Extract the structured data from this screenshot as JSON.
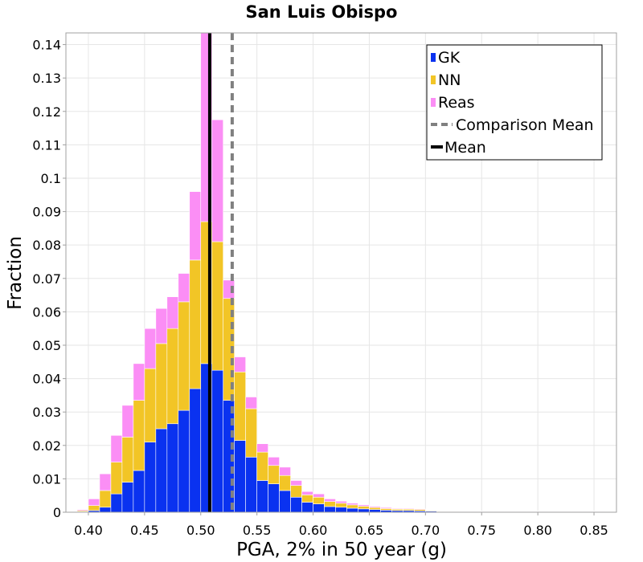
{
  "chart_data": {
    "type": "bar",
    "title": "San Luis Obispo",
    "xlabel": "PGA, 2% in 50 year (g)",
    "ylabel": "Fraction",
    "xlim": [
      0.38,
      0.87
    ],
    "ylim": [
      0,
      0.1435
    ],
    "bin_width": 0.01,
    "grid": true,
    "legend_position": "top-right",
    "x_ticks": [
      {
        "value": 0.4,
        "label": "0.40"
      },
      {
        "value": 0.45,
        "label": "0.45"
      },
      {
        "value": 0.5,
        "label": "0.50"
      },
      {
        "value": 0.55,
        "label": "0.55"
      },
      {
        "value": 0.6,
        "label": "0.60"
      },
      {
        "value": 0.65,
        "label": "0.65"
      },
      {
        "value": 0.7,
        "label": "0.70"
      },
      {
        "value": 0.75,
        "label": "0.75"
      },
      {
        "value": 0.8,
        "label": "0.80"
      },
      {
        "value": 0.85,
        "label": "0.85"
      }
    ],
    "y_ticks": [
      {
        "value": 0,
        "label": "0"
      },
      {
        "value": 0.01,
        "label": "0.01"
      },
      {
        "value": 0.02,
        "label": "0.02"
      },
      {
        "value": 0.03,
        "label": "0.03"
      },
      {
        "value": 0.04,
        "label": "0.04"
      },
      {
        "value": 0.05,
        "label": "0.05"
      },
      {
        "value": 0.06,
        "label": "0.06"
      },
      {
        "value": 0.07,
        "label": "0.07"
      },
      {
        "value": 0.08,
        "label": "0.08"
      },
      {
        "value": 0.09,
        "label": "0.09"
      },
      {
        "value": 0.1,
        "label": "0.1"
      },
      {
        "value": 0.11,
        "label": "0.11"
      },
      {
        "value": 0.12,
        "label": "0.12"
      },
      {
        "value": 0.13,
        "label": "0.13"
      },
      {
        "value": 0.14,
        "label": "0.14"
      }
    ],
    "bin_centers": [
      0.395,
      0.405,
      0.415,
      0.425,
      0.435,
      0.445,
      0.455,
      0.465,
      0.475,
      0.485,
      0.495,
      0.505,
      0.515,
      0.525,
      0.535,
      0.545,
      0.555,
      0.565,
      0.575,
      0.585,
      0.595,
      0.605,
      0.615,
      0.625,
      0.635,
      0.645,
      0.655,
      0.665,
      0.675,
      0.685,
      0.695,
      0.705,
      0.715,
      0.725,
      0.735,
      0.745,
      0.755,
      0.765,
      0.775,
      0.785,
      0.795,
      0.805,
      0.815,
      0.825,
      0.835,
      0.845,
      0.855
    ],
    "series": [
      {
        "name": "GK",
        "color": "#0a32f0",
        "values": [
          0.0002,
          0.0005,
          0.0015,
          0.0055,
          0.009,
          0.0125,
          0.021,
          0.025,
          0.0265,
          0.0305,
          0.037,
          0.0445,
          0.0425,
          0.0335,
          0.0215,
          0.0165,
          0.0095,
          0.0085,
          0.0065,
          0.0045,
          0.003,
          0.0025,
          0.0017,
          0.0015,
          0.0012,
          0.001,
          0.0008,
          0.0006,
          0.0005,
          0.0005,
          0.0004,
          0.0003,
          0.0002,
          0.0002,
          0.0001,
          0.0001,
          0.0001,
          0.0001,
          0.0001,
          0.0001,
          0.0001,
          0.0001,
          0.0001,
          0.0001,
          0.0001,
          0.0001,
          0.0001
        ]
      },
      {
        "name": "NN",
        "color": "#f2c526",
        "values": [
          0.0003,
          0.0015,
          0.005,
          0.0095,
          0.0135,
          0.021,
          0.022,
          0.0255,
          0.0285,
          0.0325,
          0.0385,
          0.0425,
          0.0385,
          0.0305,
          0.0205,
          0.0145,
          0.0085,
          0.0055,
          0.0045,
          0.0035,
          0.0022,
          0.002,
          0.0015,
          0.0012,
          0.001,
          0.0008,
          0.0006,
          0.0005,
          0.0004,
          0.0004,
          0.0004,
          0.0002,
          0.0001,
          0.0001,
          0.0001,
          0.0001,
          0.0001,
          0.0001,
          0.0001,
          0.0001,
          0.0001,
          0.0001,
          0.0001,
          0.0001,
          0.0001,
          0.0001,
          0.0001
        ]
      },
      {
        "name": "Reas",
        "color": "#fb8ef5",
        "values": [
          0.0003,
          0.002,
          0.005,
          0.008,
          0.0095,
          0.011,
          0.012,
          0.0105,
          0.0095,
          0.0085,
          0.0205,
          0.0565,
          0.0365,
          0.0055,
          0.0045,
          0.0035,
          0.0025,
          0.0025,
          0.0025,
          0.0015,
          0.001,
          0.001,
          0.0008,
          0.0006,
          0.0005,
          0.0004,
          0.0003,
          0.0003,
          0.0002,
          0.0002,
          0.0002,
          0.0001,
          0.0001,
          0.0001,
          0.0001,
          0.0001,
          0.0001,
          0.0001,
          0.0001,
          0.0001,
          0.0001,
          0.0001,
          0.0001,
          0.0001,
          0.0001,
          0.0001,
          0.0001
        ]
      }
    ],
    "lines": [
      {
        "name": "Comparison Mean",
        "x": 0.528,
        "color": "#808080",
        "style": "dashed"
      },
      {
        "name": "Mean",
        "x": 0.508,
        "color": "#000000",
        "style": "solid"
      }
    ],
    "legend": [
      {
        "label": "GK",
        "kind": "bar",
        "color": "#0a32f0"
      },
      {
        "label": "NN",
        "kind": "bar",
        "color": "#f2c526"
      },
      {
        "label": "Reas",
        "kind": "bar",
        "color": "#fb8ef5"
      },
      {
        "label": "Comparison Mean",
        "kind": "dashed-line",
        "color": "#808080"
      },
      {
        "label": "Mean",
        "kind": "line",
        "color": "#000000"
      }
    ]
  }
}
